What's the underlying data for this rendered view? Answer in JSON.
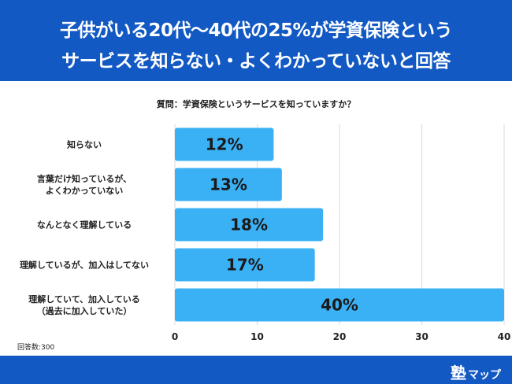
{
  "header": {
    "title_line1": "子供がいる20代〜40代の25%が学資保険という",
    "title_line2": "サービスを知らない・よくわかっていないと回答",
    "background_color": "#1259c3"
  },
  "question": "質問：学資保険というサービスを知っていますか？",
  "note": "回答数:300",
  "brand": {
    "main": "塾",
    "sub": "マップ"
  },
  "chart_data": {
    "type": "bar",
    "orientation": "horizontal",
    "categories": [
      [
        "知らない"
      ],
      [
        "言葉だけ知っているが、",
        "よくわかっていない"
      ],
      [
        "なんとなく理解している"
      ],
      [
        "理解しているが、加入はしてない"
      ],
      [
        "理解していて、加入している",
        "（過去に加入していた）"
      ]
    ],
    "values": [
      12,
      13,
      18,
      17,
      40
    ],
    "value_labels": [
      "12%",
      "13%",
      "18%",
      "17%",
      "40%"
    ],
    "unit": "%",
    "xlim": [
      0,
      40
    ],
    "xticks": [
      0,
      10,
      20,
      30,
      40
    ],
    "grid": true,
    "bar_color": "#3ab0f5",
    "grid_color": "#d8d8d8"
  }
}
